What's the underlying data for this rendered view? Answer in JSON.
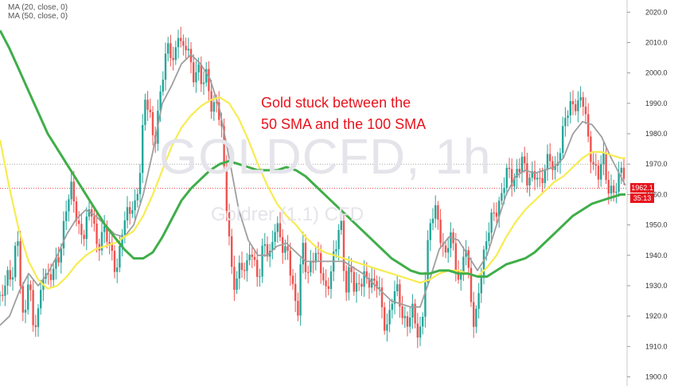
{
  "legend": [
    {
      "label": "MA (20, close, 0)"
    },
    {
      "label": "MA (50, close, 0)"
    }
  ],
  "annotation": {
    "line1": "Gold stuck between the",
    "line2": "50 SMA and the 100 SMA"
  },
  "watermark": {
    "symbol": "GOLDCFD, 1h",
    "source": "Goldrer (1.1) CFD"
  },
  "price_labels": {
    "current": "1962.1",
    "countdown": "35:13"
  },
  "colors": {
    "up": "#26a69a",
    "down": "#ef5350",
    "ma20": "#9e9e9e",
    "ma50": "#f7ec50",
    "ma100": "#3fae49",
    "annotation": "#e8131d",
    "price_box": "#e8131d"
  },
  "chart_data": {
    "type": "candlestick",
    "symbol": "GOLDCFD",
    "timeframe": "1h",
    "ylim": [
      1897,
      2024
    ],
    "yticks": [
      1900,
      1910,
      1920,
      1930,
      1940,
      1950,
      1960,
      1970,
      1980,
      1990,
      2000,
      2010,
      2020
    ],
    "ytick_labels": [
      "1900.0",
      "1910.0",
      "1920.0",
      "1930.0",
      "1940.0",
      "1950.0",
      "1960.0",
      "1970.0",
      "1980.0",
      "1990.0",
      "2000.0",
      "2010.0",
      "2020.0"
    ],
    "reference_line": 1970,
    "current_price": 1962.1,
    "close_path": [
      [
        0,
        1925
      ],
      [
        8,
        1936
      ],
      [
        15,
        1930
      ],
      [
        22,
        1945
      ],
      [
        30,
        1918
      ],
      [
        36,
        1935
      ],
      [
        42,
        1912
      ],
      [
        48,
        1922
      ],
      [
        55,
        1938
      ],
      [
        62,
        1930
      ],
      [
        68,
        1934
      ],
      [
        75,
        1942
      ],
      [
        82,
        1955
      ],
      [
        90,
        1960
      ],
      [
        98,
        1951
      ],
      [
        106,
        1948
      ],
      [
        114,
        1954
      ],
      [
        122,
        1944
      ],
      [
        130,
        1950
      ],
      [
        138,
        1940
      ],
      [
        146,
        1936
      ],
      [
        154,
        1950
      ],
      [
        162,
        1952
      ],
      [
        170,
        1958
      ],
      [
        176,
        1970
      ],
      [
        182,
        1990
      ],
      [
        188,
        1985
      ],
      [
        194,
        1978
      ],
      [
        200,
        1992
      ],
      [
        206,
        2000
      ],
      [
        212,
        2008
      ],
      [
        218,
        2005
      ],
      [
        224,
        2015
      ],
      [
        230,
        2005
      ],
      [
        236,
        2008
      ],
      [
        242,
        2000
      ],
      [
        248,
        2004
      ],
      [
        254,
        1994
      ],
      [
        260,
        1998
      ],
      [
        266,
        1990
      ],
      [
        272,
        1992
      ],
      [
        278,
        1980
      ],
      [
        284,
        1958
      ],
      [
        290,
        1940
      ],
      [
        296,
        1930
      ],
      [
        302,
        1936
      ],
      [
        308,
        1932
      ],
      [
        314,
        1945
      ],
      [
        320,
        1938
      ],
      [
        326,
        1930
      ],
      [
        332,
        1945
      ],
      [
        338,
        1940
      ],
      [
        344,
        1950
      ],
      [
        350,
        1946
      ],
      [
        356,
        1940
      ],
      [
        362,
        1944
      ],
      [
        368,
        1930
      ],
      [
        374,
        1918
      ],
      [
        380,
        1944
      ],
      [
        386,
        1935
      ],
      [
        392,
        1940
      ],
      [
        398,
        1938
      ],
      [
        404,
        1934
      ],
      [
        410,
        1930
      ],
      [
        416,
        1936
      ],
      [
        422,
        1940
      ],
      [
        428,
        1952
      ],
      [
        434,
        1930
      ],
      [
        440,
        1938
      ],
      [
        446,
        1925
      ],
      [
        452,
        1930
      ],
      [
        458,
        1936
      ],
      [
        464,
        1932
      ],
      [
        470,
        1928
      ],
      [
        476,
        1930
      ],
      [
        482,
        1920
      ],
      [
        488,
        1918
      ],
      [
        494,
        1925
      ],
      [
        500,
        1928
      ],
      [
        506,
        1922
      ],
      [
        512,
        1918
      ],
      [
        518,
        1920
      ],
      [
        524,
        1914
      ],
      [
        530,
        1918
      ],
      [
        536,
        1940
      ],
      [
        542,
        1950
      ],
      [
        548,
        1955
      ],
      [
        554,
        1948
      ],
      [
        560,
        1940
      ],
      [
        566,
        1945
      ],
      [
        572,
        1938
      ],
      [
        578,
        1932
      ],
      [
        584,
        1946
      ],
      [
        590,
        1928
      ],
      [
        596,
        1915
      ],
      [
        602,
        1932
      ],
      [
        608,
        1940
      ],
      [
        614,
        1946
      ],
      [
        620,
        1954
      ],
      [
        626,
        1958
      ],
      [
        632,
        1962
      ],
      [
        638,
        1966
      ],
      [
        644,
        1964
      ],
      [
        650,
        1970
      ],
      [
        656,
        1972
      ],
      [
        662,
        1962
      ],
      [
        668,
        1966
      ],
      [
        674,
        1970
      ],
      [
        680,
        1962
      ],
      [
        686,
        1968
      ],
      [
        692,
        1972
      ],
      [
        698,
        1970
      ],
      [
        704,
        1975
      ],
      [
        710,
        1982
      ],
      [
        716,
        1990
      ],
      [
        722,
        1992
      ],
      [
        728,
        1990
      ],
      [
        734,
        1988
      ],
      [
        740,
        1976
      ],
      [
        746,
        1972
      ],
      [
        752,
        1966
      ],
      [
        758,
        1970
      ],
      [
        764,
        1962
      ],
      [
        770,
        1964
      ],
      [
        776,
        1962
      ],
      [
        782,
        1968
      ],
      [
        786,
        1962
      ]
    ],
    "series": [
      {
        "name": "MA (20, close, 0)",
        "color": "#9e9e9e",
        "points": [
          [
            0,
            1917
          ],
          [
            12,
            1920
          ],
          [
            24,
            1928
          ],
          [
            36,
            1934
          ],
          [
            48,
            1930
          ],
          [
            60,
            1934
          ],
          [
            72,
            1940
          ],
          [
            84,
            1947
          ],
          [
            96,
            1952
          ],
          [
            108,
            1955
          ],
          [
            120,
            1953
          ],
          [
            132,
            1950
          ],
          [
            144,
            1947
          ],
          [
            156,
            1946
          ],
          [
            168,
            1950
          ],
          [
            180,
            1960
          ],
          [
            192,
            1974
          ],
          [
            204,
            1990
          ],
          [
            216,
            1996
          ],
          [
            228,
            2003
          ],
          [
            240,
            2006
          ],
          [
            252,
            2003
          ],
          [
            264,
            1998
          ],
          [
            276,
            1988
          ],
          [
            288,
            1972
          ],
          [
            300,
            1955
          ],
          [
            312,
            1945
          ],
          [
            324,
            1940
          ],
          [
            336,
            1940
          ],
          [
            348,
            1943
          ],
          [
            360,
            1944
          ],
          [
            372,
            1941
          ],
          [
            384,
            1938
          ],
          [
            396,
            1938
          ],
          [
            408,
            1938
          ],
          [
            420,
            1938
          ],
          [
            432,
            1938
          ],
          [
            444,
            1936
          ],
          [
            456,
            1934
          ],
          [
            468,
            1931
          ],
          [
            480,
            1928
          ],
          [
            492,
            1925
          ],
          [
            504,
            1924
          ],
          [
            516,
            1923
          ],
          [
            528,
            1923
          ],
          [
            540,
            1932
          ],
          [
            552,
            1942
          ],
          [
            564,
            1946
          ],
          [
            576,
            1945
          ],
          [
            588,
            1940
          ],
          [
            600,
            1935
          ],
          [
            612,
            1940
          ],
          [
            624,
            1950
          ],
          [
            636,
            1960
          ],
          [
            648,
            1966
          ],
          [
            660,
            1968
          ],
          [
            672,
            1967
          ],
          [
            684,
            1968
          ],
          [
            696,
            1969
          ],
          [
            708,
            1972
          ],
          [
            720,
            1980
          ],
          [
            732,
            1984
          ],
          [
            744,
            1983
          ],
          [
            756,
            1979
          ],
          [
            768,
            1972
          ],
          [
            780,
            1966
          ],
          [
            786,
            1963
          ]
        ]
      },
      {
        "name": "",
        "color": "#f7ec50",
        "points": [
          [
            0,
            1978
          ],
          [
            12,
            1962
          ],
          [
            24,
            1948
          ],
          [
            36,
            1938
          ],
          [
            48,
            1932
          ],
          [
            60,
            1929
          ],
          [
            72,
            1930
          ],
          [
            84,
            1933
          ],
          [
            96,
            1937
          ],
          [
            108,
            1940
          ],
          [
            120,
            1942
          ],
          [
            132,
            1943
          ],
          [
            144,
            1944
          ],
          [
            156,
            1946
          ],
          [
            168,
            1948
          ],
          [
            180,
            1953
          ],
          [
            192,
            1960
          ],
          [
            204,
            1968
          ],
          [
            216,
            1976
          ],
          [
            228,
            1982
          ],
          [
            240,
            1986
          ],
          [
            252,
            1989
          ],
          [
            264,
            1991
          ],
          [
            276,
            1992
          ],
          [
            288,
            1990
          ],
          [
            300,
            1985
          ],
          [
            312,
            1978
          ],
          [
            324,
            1970
          ],
          [
            336,
            1963
          ],
          [
            348,
            1957
          ],
          [
            360,
            1953
          ],
          [
            372,
            1950
          ],
          [
            384,
            1946
          ],
          [
            396,
            1943
          ],
          [
            408,
            1941
          ],
          [
            420,
            1940
          ],
          [
            432,
            1939
          ],
          [
            444,
            1938
          ],
          [
            456,
            1937
          ],
          [
            468,
            1936
          ],
          [
            480,
            1935
          ],
          [
            492,
            1934
          ],
          [
            504,
            1933
          ],
          [
            516,
            1932
          ],
          [
            528,
            1931
          ],
          [
            540,
            1932
          ],
          [
            552,
            1934
          ],
          [
            564,
            1935
          ],
          [
            576,
            1935
          ],
          [
            588,
            1934
          ],
          [
            600,
            1933
          ],
          [
            612,
            1936
          ],
          [
            624,
            1940
          ],
          [
            636,
            1946
          ],
          [
            648,
            1951
          ],
          [
            660,
            1955
          ],
          [
            672,
            1958
          ],
          [
            684,
            1961
          ],
          [
            696,
            1964
          ],
          [
            708,
            1966
          ],
          [
            720,
            1969
          ],
          [
            732,
            1972
          ],
          [
            744,
            1974
          ],
          [
            756,
            1974
          ],
          [
            768,
            1973
          ],
          [
            780,
            1972
          ],
          [
            786,
            1972
          ]
        ]
      },
      {
        "name": "MA (50, close, 0)",
        "color": "#3fae49",
        "points": [
          [
            0,
            2014
          ],
          [
            12,
            2008
          ],
          [
            24,
            2001
          ],
          [
            36,
            1994
          ],
          [
            48,
            1987
          ],
          [
            60,
            1980
          ],
          [
            72,
            1975
          ],
          [
            84,
            1970
          ],
          [
            96,
            1965
          ],
          [
            108,
            1960
          ],
          [
            120,
            1955
          ],
          [
            132,
            1950
          ],
          [
            144,
            1946
          ],
          [
            156,
            1942
          ],
          [
            168,
            1939
          ],
          [
            180,
            1939
          ],
          [
            192,
            1941
          ],
          [
            204,
            1946
          ],
          [
            216,
            1952
          ],
          [
            228,
            1958
          ],
          [
            240,
            1962
          ],
          [
            252,
            1965
          ],
          [
            264,
            1968
          ],
          [
            276,
            1970
          ],
          [
            288,
            1971
          ],
          [
            300,
            1970
          ],
          [
            312,
            1969
          ],
          [
            324,
            1968
          ],
          [
            336,
            1968
          ],
          [
            348,
            1968
          ],
          [
            360,
            1969
          ],
          [
            372,
            1968
          ],
          [
            384,
            1966
          ],
          [
            396,
            1963
          ],
          [
            408,
            1960
          ],
          [
            420,
            1957
          ],
          [
            432,
            1954
          ],
          [
            444,
            1951
          ],
          [
            456,
            1948
          ],
          [
            468,
            1945
          ],
          [
            480,
            1942
          ],
          [
            492,
            1939
          ],
          [
            504,
            1937
          ],
          [
            516,
            1935
          ],
          [
            528,
            1934
          ],
          [
            540,
            1934
          ],
          [
            552,
            1935
          ],
          [
            564,
            1935
          ],
          [
            576,
            1934
          ],
          [
            588,
            1934
          ],
          [
            600,
            1933
          ],
          [
            612,
            1933
          ],
          [
            624,
            1935
          ],
          [
            636,
            1937
          ],
          [
            648,
            1938
          ],
          [
            660,
            1939
          ],
          [
            672,
            1941
          ],
          [
            684,
            1944
          ],
          [
            696,
            1947
          ],
          [
            708,
            1950
          ],
          [
            720,
            1953
          ],
          [
            732,
            1955
          ],
          [
            744,
            1957
          ],
          [
            756,
            1958
          ],
          [
            768,
            1959
          ],
          [
            780,
            1960
          ],
          [
            786,
            1960
          ]
        ]
      }
    ]
  }
}
